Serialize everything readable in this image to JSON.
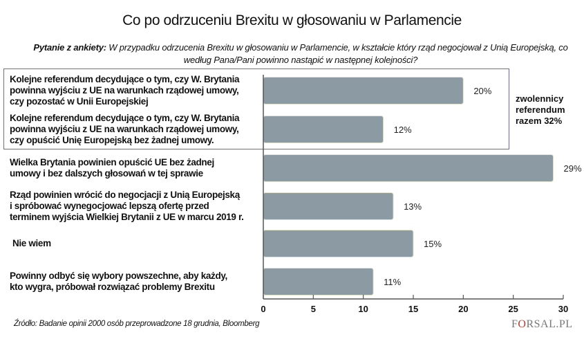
{
  "chart_data": {
    "type": "bar",
    "orientation": "horizontal",
    "title": "Co po odrzuceniu Brexitu w głosowaniu w Parlamencie",
    "subtitle_label": "Pytanie z ankiety:",
    "subtitle": "W przypadku odrzucenia Brexitu w głosowaniu w Parlamencie, w kształcie który rząd negocjował z Unią Europejską, co według Pana/Pani powinno nastąpić w następnej kolejności?",
    "categories": [
      [
        "Kolejne referendum decydujące o tym, czy W. Brytania",
        "powinna wyjściu z UE na warunkach rządowej umowy,",
        "czy pozostać w Unii Europejskiej"
      ],
      [
        "Kolejne referendum decydujące o tym, czy W. Brytania",
        "powinna wyjściu z UE na warunkach rządowej umowy,",
        "czy opuścić Unię Europejską bez żadnej umowy."
      ],
      [
        "Wielka Brytania powinien opuścić UE bez żadnej",
        "umowy i bez dalszych głosowań w tej sprawie"
      ],
      [
        "Rząd powinien wrócić do negocjacji z Unią Europejską",
        "i spróbować wynegocjować lepszą ofertę przed",
        "terminem wyjścia Wielkiej Brytanii z UE w marcu 2019 r."
      ],
      [
        "Nie wiem"
      ],
      [
        "Powinny odbyć się wybory powszechne, aby każdy,",
        "kto wygra, próbował rozwiązać problemy Brexitu"
      ]
    ],
    "values": [
      20,
      12,
      29,
      13,
      15,
      11
    ],
    "data_labels": [
      "20%",
      "12%",
      "29%",
      "13%",
      "15%",
      "11%"
    ],
    "xlim": [
      0,
      30
    ],
    "xticks": [
      "0",
      "5",
      "10",
      "15",
      "20",
      "25",
      "30"
    ],
    "grid": false,
    "bar_color": "#8c9ba3",
    "highlight_box_color": "#6a6aa0",
    "annotation": [
      "zwolennicy",
      "referendum",
      "razem 32%"
    ],
    "source": "Źródło: Badanie opinii 2000 osób przeprowadzone 18 grudnia, Bloomberg"
  },
  "logo": "FORSAL.PL"
}
